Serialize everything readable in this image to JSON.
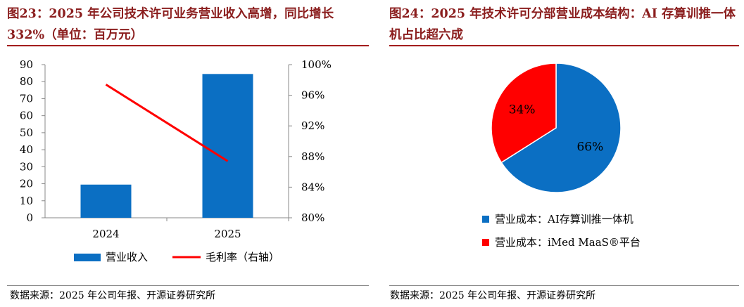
{
  "left": {
    "title": "图23：2025 年公司技术许可业务营业收入高增，同比增长 332%（单位：百万元）",
    "source": "数据来源：2025 年公司年报、开源证券研究所"
  },
  "right": {
    "title": "图24：2025 年技术许可分部营业成本结构：AI 存算训推一体机占比超六成",
    "source": "数据来源：2025 年公司年报、开源证券研究所"
  },
  "colors": {
    "bar": "#0b6fc3",
    "line": "#ff0000",
    "pie_ai": "#0b6fc3",
    "pie_imed": "#ff0000",
    "title": "#8b1e1e"
  },
  "chart_data": [
    {
      "type": "bar",
      "categories": [
        "2024",
        "2025"
      ],
      "series": [
        {
          "name": "营业收入",
          "type": "bar",
          "axis": "left",
          "values": [
            19.5,
            84.5
          ]
        },
        {
          "name": "毛利率（右轴）",
          "type": "line",
          "axis": "right",
          "values": [
            0.974,
            0.874
          ]
        }
      ],
      "y_left": {
        "min": 0,
        "max": 90,
        "ticks": [
          "0",
          "10",
          "20",
          "30",
          "40",
          "50",
          "60",
          "70",
          "80",
          "90"
        ]
      },
      "y_right": {
        "min": 0.8,
        "max": 1.0,
        "ticks": [
          "80%",
          "84%",
          "88%",
          "92%",
          "96%",
          "100%"
        ]
      },
      "grid": false,
      "legend": "bottom"
    },
    {
      "type": "pie",
      "slices": [
        {
          "name": "营业成本：AI存算训推一体机",
          "value": 66,
          "label": "66%"
        },
        {
          "name": "营业成本：iMed MaaS®平台",
          "value": 34,
          "label": "34%"
        }
      ],
      "legend": "bottom"
    }
  ]
}
